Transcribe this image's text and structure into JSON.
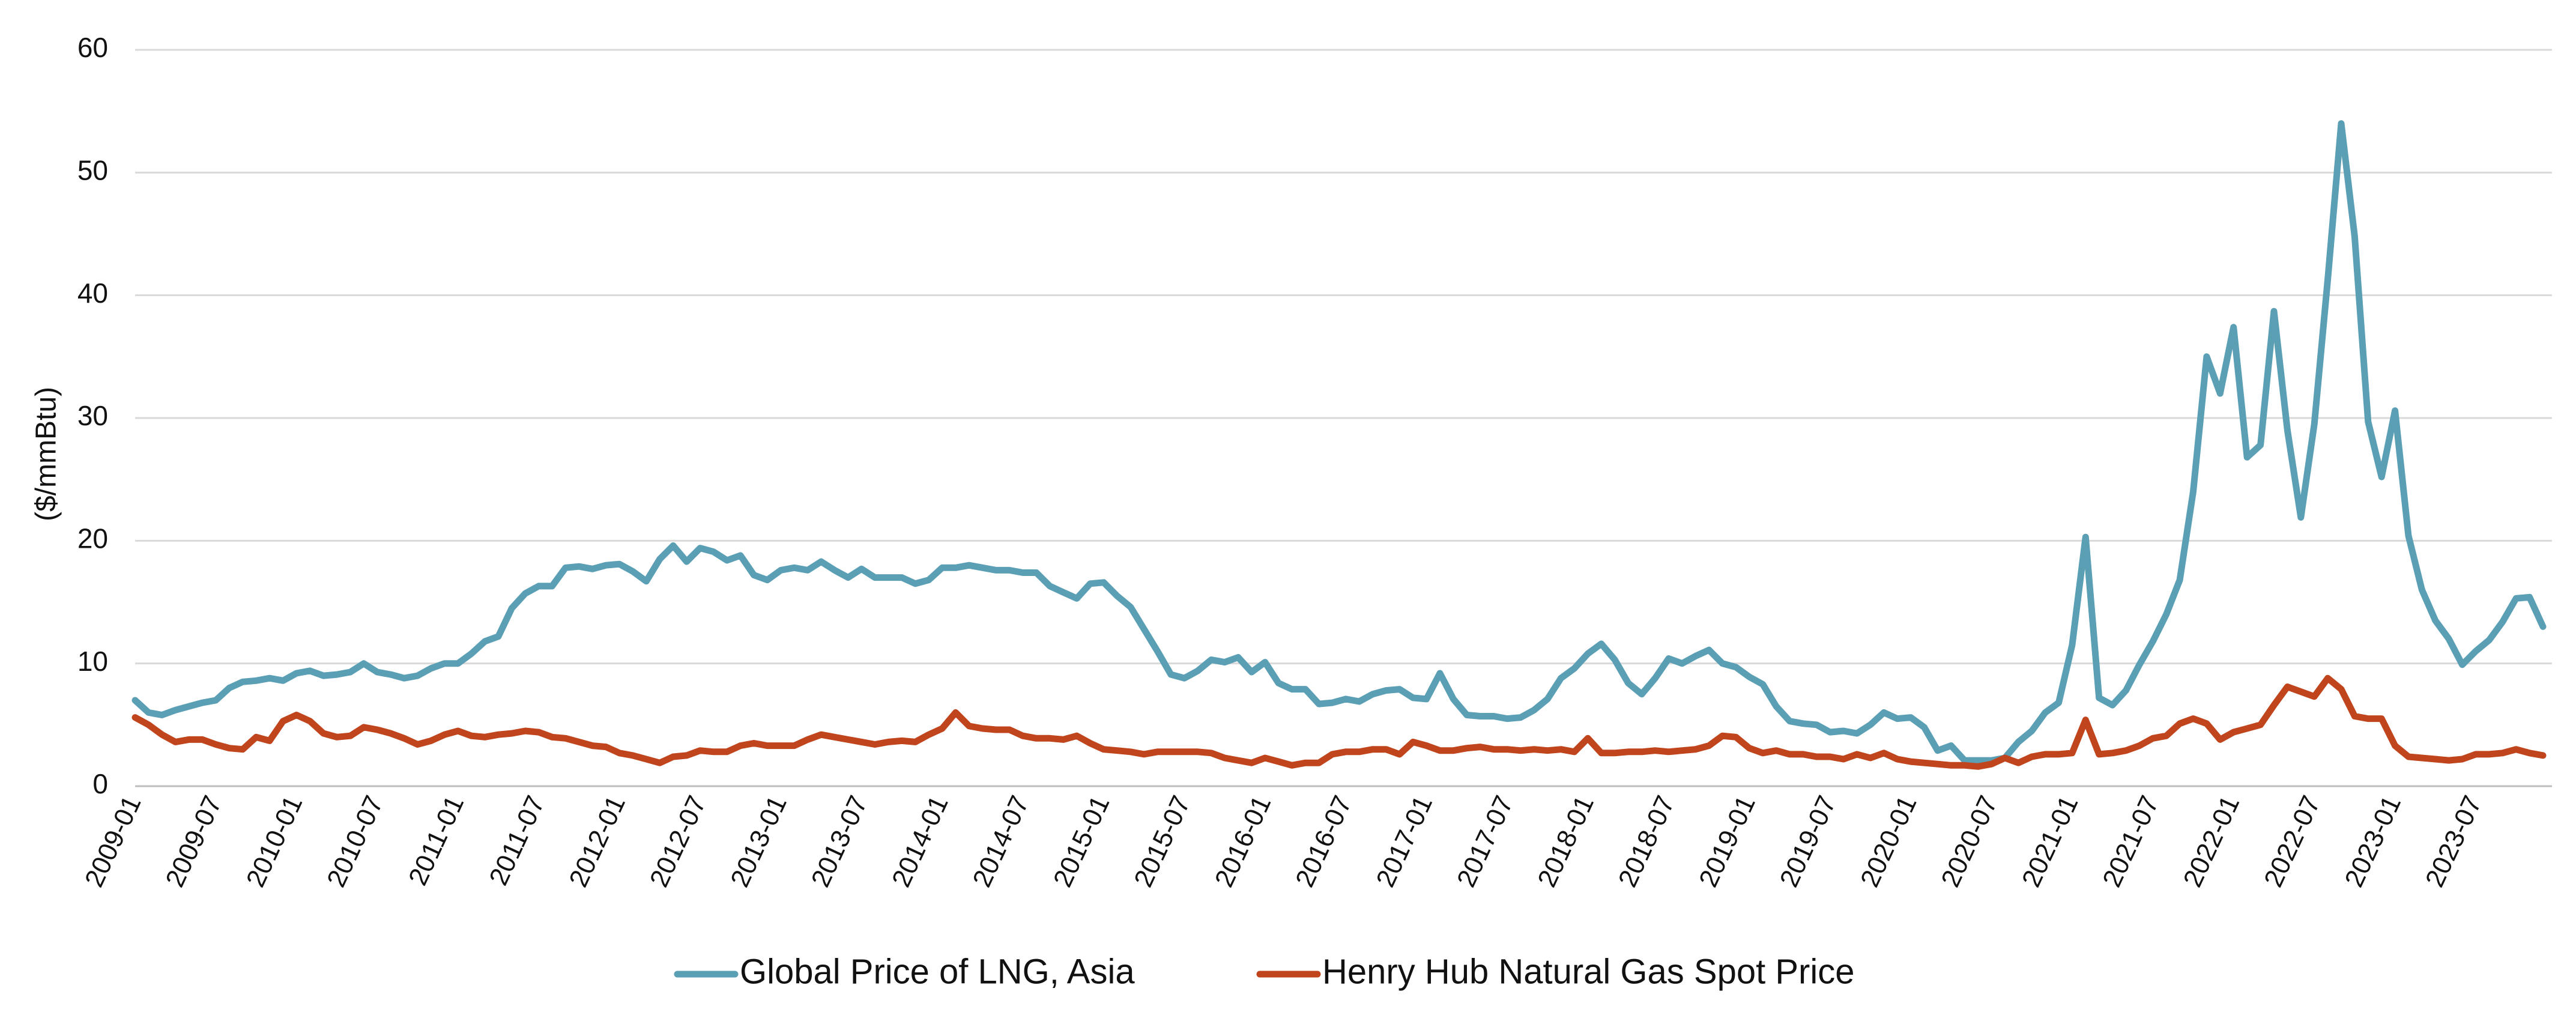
{
  "chart_data": {
    "type": "line",
    "ylabel": "($/mmBtu)",
    "ylim": [
      0,
      60
    ],
    "yticks": [
      0,
      10,
      20,
      30,
      40,
      50,
      60
    ],
    "grid": true,
    "legend": "bottom",
    "categories": [
      "2009-01",
      null,
      null,
      null,
      null,
      null,
      "2009-07",
      null,
      null,
      null,
      null,
      null,
      "2010-01",
      null,
      null,
      null,
      null,
      null,
      "2010-07",
      null,
      null,
      null,
      null,
      null,
      "2011-01",
      null,
      null,
      null,
      null,
      null,
      "2011-07",
      null,
      null,
      null,
      null,
      null,
      "2012-01",
      null,
      null,
      null,
      null,
      null,
      "2012-07",
      null,
      null,
      null,
      null,
      null,
      "2013-01",
      null,
      null,
      null,
      null,
      null,
      "2013-07",
      null,
      null,
      null,
      null,
      null,
      "2014-01",
      null,
      null,
      null,
      null,
      null,
      "2014-07",
      null,
      null,
      null,
      null,
      null,
      "2015-01",
      null,
      null,
      null,
      null,
      null,
      "2015-07",
      null,
      null,
      null,
      null,
      null,
      "2016-01",
      null,
      null,
      null,
      null,
      null,
      "2016-07",
      null,
      null,
      null,
      null,
      null,
      "2017-01",
      null,
      null,
      null,
      null,
      null,
      "2017-07",
      null,
      null,
      null,
      null,
      null,
      "2018-01",
      null,
      null,
      null,
      null,
      null,
      "2018-07",
      null,
      null,
      null,
      null,
      null,
      "2019-01",
      null,
      null,
      null,
      null,
      null,
      "2019-07",
      null,
      null,
      null,
      null,
      null,
      "2020-01",
      null,
      null,
      null,
      null,
      null,
      "2020-07",
      null,
      null,
      null,
      null,
      null,
      "2021-01",
      null,
      null,
      null,
      null,
      null,
      "2021-07",
      null,
      null,
      null,
      null,
      null,
      "2022-01",
      null,
      null,
      null,
      null,
      null,
      "2022-07",
      null,
      null,
      null,
      null,
      null,
      "2023-01",
      null,
      null,
      null,
      null,
      null,
      "2023-07",
      null,
      null,
      null,
      null,
      null
    ],
    "series": [
      {
        "name": "Global Price of LNG, Asia",
        "color": "#5b9fb5",
        "values": [
          7,
          6,
          5.8,
          6.2,
          6.5,
          6.8,
          7,
          8,
          8.5,
          8.6,
          8.8,
          8.6,
          9.2,
          9.4,
          9,
          9.1,
          9.3,
          10,
          9.3,
          9.1,
          8.8,
          9,
          9.6,
          10,
          10,
          10.8,
          11.8,
          12.2,
          14.5,
          15.7,
          16.3,
          16.3,
          17.8,
          17.9,
          17.7,
          18,
          18.1,
          17.5,
          16.7,
          18.5,
          19.6,
          18.3,
          19.4,
          19.1,
          18.4,
          18.8,
          17.2,
          16.8,
          17.6,
          17.8,
          17.6,
          18.3,
          17.6,
          17,
          17.7,
          17,
          17,
          17,
          16.5,
          16.8,
          17.8,
          17.8,
          18,
          17.8,
          17.6,
          17.6,
          17.4,
          17.4,
          16.3,
          15.8,
          15.3,
          16.5,
          16.6,
          15.5,
          14.6,
          12.8,
          11,
          9.1,
          8.8,
          9.4,
          10.3,
          10.1,
          10.5,
          9.3,
          10.1,
          8.4,
          7.9,
          7.9,
          6.7,
          6.8,
          7.1,
          6.9,
          7.5,
          7.8,
          7.9,
          7.2,
          7.1,
          9.2,
          7.1,
          5.8,
          5.7,
          5.7,
          5.5,
          5.6,
          6.2,
          7.1,
          8.8,
          9.6,
          10.8,
          11.6,
          10.3,
          8.4,
          7.5,
          8.8,
          10.4,
          10,
          10.6,
          11.1,
          10,
          9.7,
          8.9,
          8.3,
          6.5,
          5.3,
          5.1,
          5,
          4.4,
          4.5,
          4.3,
          5,
          6,
          5.5,
          5.6,
          4.8,
          2.9,
          3.3,
          2.1,
          2.1,
          2.1,
          2.3,
          3.6,
          4.5,
          6,
          6.8,
          11.5,
          20.3,
          7.2,
          6.6,
          7.8,
          9.9,
          11.8,
          14,
          16.8,
          24,
          35,
          32,
          37.4,
          26.8,
          27.8,
          38.7,
          29,
          21.9,
          29.5,
          41.3,
          54,
          44.8,
          29.7,
          25.2,
          30.6,
          20.4,
          16,
          13.5,
          12,
          9.9,
          11,
          11.9,
          13.4,
          15.3,
          15.4,
          13
        ]
      },
      {
        "name": "Henry Hub Natural Gas Spot Price",
        "color": "#c0441c",
        "values": [
          5.6,
          5,
          4.2,
          3.6,
          3.8,
          3.8,
          3.4,
          3.1,
          3,
          4,
          3.7,
          5.3,
          5.8,
          5.3,
          4.3,
          4,
          4.1,
          4.8,
          4.6,
          4.3,
          3.9,
          3.4,
          3.7,
          4.2,
          4.5,
          4.1,
          4,
          4.2,
          4.3,
          4.5,
          4.4,
          4,
          3.9,
          3.6,
          3.3,
          3.2,
          2.7,
          2.5,
          2.2,
          1.9,
          2.4,
          2.5,
          2.9,
          2.8,
          2.8,
          3.3,
          3.5,
          3.3,
          3.3,
          3.3,
          3.8,
          4.2,
          4,
          3.8,
          3.6,
          3.4,
          3.6,
          3.7,
          3.6,
          4.2,
          4.7,
          6,
          4.9,
          4.7,
          4.6,
          4.6,
          4.1,
          3.9,
          3.9,
          3.8,
          4.1,
          3.5,
          3,
          2.9,
          2.8,
          2.6,
          2.8,
          2.8,
          2.8,
          2.8,
          2.7,
          2.3,
          2.1,
          1.9,
          2.3,
          2,
          1.7,
          1.9,
          1.9,
          2.6,
          2.8,
          2.8,
          3,
          3,
          2.6,
          3.6,
          3.3,
          2.9,
          2.9,
          3.1,
          3.2,
          3,
          3,
          2.9,
          3,
          2.9,
          3,
          2.8,
          3.9,
          2.7,
          2.7,
          2.8,
          2.8,
          2.9,
          2.8,
          2.9,
          3,
          3.3,
          4.1,
          4,
          3.1,
          2.7,
          2.9,
          2.6,
          2.6,
          2.4,
          2.4,
          2.2,
          2.6,
          2.3,
          2.7,
          2.2,
          2,
          1.9,
          1.8,
          1.7,
          1.7,
          1.6,
          1.8,
          2.3,
          1.9,
          2.4,
          2.6,
          2.6,
          2.7,
          5.4,
          2.6,
          2.7,
          2.9,
          3.3,
          3.9,
          4.1,
          5.1,
          5.5,
          5.1,
          3.8,
          4.4,
          4.7,
          5,
          6.6,
          8.1,
          7.7,
          7.3,
          8.8,
          7.9,
          5.7,
          5.5,
          5.5,
          3.3,
          2.4,
          2.3,
          2.2,
          2.1,
          2.2,
          2.6,
          2.6,
          2.7,
          3,
          2.7,
          2.5
        ]
      }
    ]
  }
}
